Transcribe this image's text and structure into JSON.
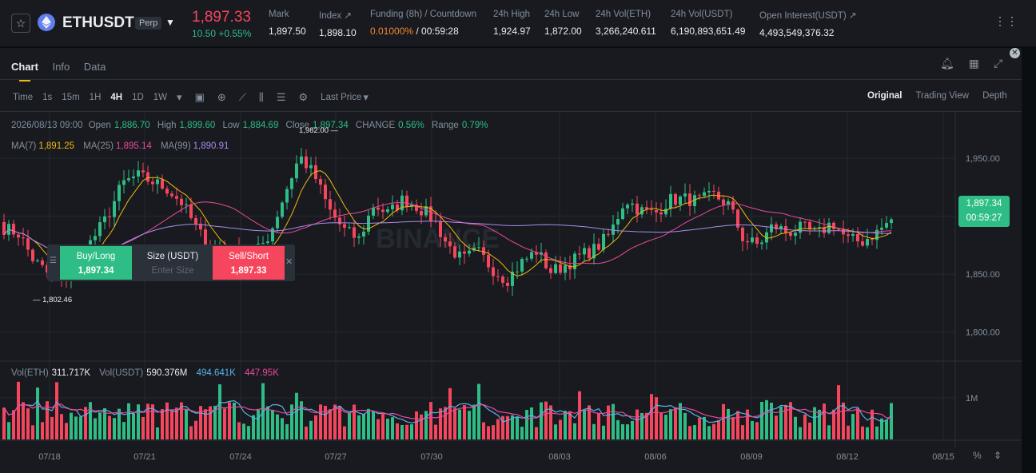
{
  "header": {
    "symbol": "ETHUSDT",
    "contract_type": "Perp",
    "last_price": "1,897.33",
    "change": "10.50 +0.55%",
    "stats": [
      {
        "label": "Mark",
        "value": "1,897.50"
      },
      {
        "label": "Index ↗",
        "value": "1,898.10"
      },
      {
        "label": "Funding (8h) / Countdown",
        "value": "0.01000%",
        "value2": " / 00:59:28"
      },
      {
        "label": "24h High",
        "value": "1,924.97"
      },
      {
        "label": "24h Low",
        "value": "1,872.00"
      },
      {
        "label": "24h Vol(ETH)",
        "value": "3,266,240.611"
      },
      {
        "label": "24h Vol(USDT)",
        "value": "6,190,893,651.49"
      },
      {
        "label": "Open Interest(USDT) ↗",
        "value": "4,493,549,376.32"
      }
    ],
    "icons": [
      "star-icon",
      "eth-coin-icon",
      "chevron-down-icon",
      "more-icon"
    ]
  },
  "tabs": [
    "Chart",
    "Info",
    "Data"
  ],
  "toolbar": {
    "time_label": "Time",
    "intervals": [
      "1s",
      "15m",
      "1H",
      "4H",
      "1D",
      "1W"
    ],
    "active_interval": "4H",
    "price_type": "Last Price",
    "views": [
      "Original",
      "Trading View",
      "Depth"
    ],
    "active_view": "Original"
  },
  "ohlc": {
    "date": "2026/08/13 09:00",
    "open_label": "Open",
    "open": "1,886.70",
    "high_label": "High",
    "high": "1,899.60",
    "low_label": "Low",
    "low": "1,884.69",
    "close_label": "Close",
    "close": "1,897.34",
    "change_label": "CHANGE",
    "change": "0.56%",
    "range_label": "Range",
    "range": "0.79%"
  },
  "ma": [
    {
      "label": "MA(7)",
      "value": "1,891.25",
      "color": "#f0b90b"
    },
    {
      "label": "MA(25)",
      "value": "1,895.14",
      "color": "#e94a9a"
    },
    {
      "label": "MA(99)",
      "value": "1,890.91",
      "color": "#a98ce8"
    }
  ],
  "volume": {
    "label_eth": "Vol(ETH)",
    "value_eth": "311.717K",
    "label_usdt": "Vol(USDT)",
    "value_usdt": "590.376M",
    "ma1": "494.641K",
    "ma1_color": "#56b3e8",
    "ma2": "447.95K",
    "ma2_color": "#e94a9a",
    "axis_label": "1M"
  },
  "price_tag": {
    "price": "1,897.34",
    "countdown": "00:59:27"
  },
  "order": {
    "buy_label": "Buy/Long",
    "buy_price": "1,897.34",
    "size_label": "Size (USDT)",
    "size_placeholder": "Enter Size",
    "sell_label": "Sell/Short",
    "sell_price": "1,897.33"
  },
  "markers": {
    "high": "1,982.00",
    "low": "1,802.46"
  },
  "watermark": "BINANCE",
  "chart_data": {
    "type": "candlestick",
    "y_ticks": [
      1950,
      1900,
      1850,
      1800
    ],
    "y_tick_labels": [
      "1,950.00",
      "1,900.00",
      "1,850.00",
      "1,800.00"
    ],
    "ylim": [
      1775,
      1990
    ],
    "x_tick_labels": [
      "07/18",
      "07/21",
      "07/24",
      "07/27",
      "07/30",
      "08/03",
      "08/06",
      "08/09",
      "08/12",
      "08/15"
    ],
    "colors": {
      "up": "#2ebd85",
      "down": "#f6465d"
    },
    "close_anchors": [
      1890,
      1885,
      1862,
      1850,
      1843,
      1862,
      1880,
      1900,
      1928,
      1935,
      1930,
      1924,
      1912,
      1890,
      1870,
      1872,
      1865,
      1868,
      1885,
      1920,
      1952,
      1935,
      1905,
      1888,
      1880,
      1910,
      1902,
      1915,
      1908,
      1898,
      1875,
      1862,
      1870,
      1855,
      1845,
      1860,
      1870,
      1852,
      1858,
      1866,
      1872,
      1885,
      1915,
      1905,
      1902,
      1914,
      1915,
      1913,
      1918,
      1910,
      1880,
      1875,
      1892,
      1886,
      1890,
      1884,
      1895,
      1880,
      1878,
      1886,
      1897
    ]
  }
}
